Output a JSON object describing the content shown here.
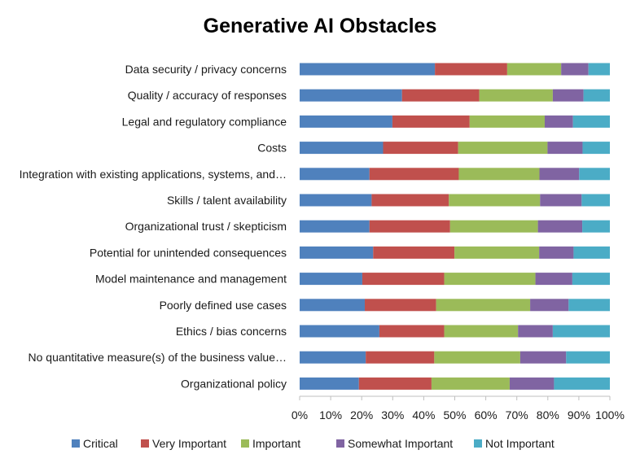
{
  "chart_data": {
    "type": "bar",
    "orientation": "horizontal",
    "stacking": "percent",
    "title": "Generative AI Obstacles",
    "xlabel": "",
    "ylabel": "",
    "xlim": [
      0,
      100
    ],
    "grid": false,
    "legend_position": "bottom",
    "x_ticks": [
      "0%",
      "10%",
      "20%",
      "30%",
      "40%",
      "50%",
      "60%",
      "70%",
      "80%",
      "90%",
      "100%"
    ],
    "categories": [
      "Data security / privacy concerns",
      "Quality / accuracy of responses",
      "Legal and regulatory compliance",
      "Costs",
      "Integration with existing applications, systems, and…",
      "Skills / talent availability",
      "Organizational trust / skepticism",
      "Potential for unintended consequences",
      "Model maintenance and management",
      "Poorly defined use cases",
      "Ethics / bias concerns",
      "No quantitative measure(s) of the business value…",
      "Organizational policy"
    ],
    "series": [
      {
        "name": "Critical",
        "color": "#4f81bd",
        "values": [
          43.6,
          33.0,
          29.9,
          26.9,
          22.5,
          23.2,
          22.5,
          23.7,
          20.2,
          21.0,
          25.7,
          21.3,
          19.1
        ]
      },
      {
        "name": "Very Important",
        "color": "#c0504d",
        "values": [
          23.3,
          24.9,
          24.9,
          24.2,
          28.8,
          24.9,
          26.0,
          26.2,
          26.4,
          23.0,
          20.9,
          22.1,
          23.4
        ]
      },
      {
        "name": "Important",
        "color": "#9bbb59",
        "values": [
          17.4,
          23.7,
          24.2,
          28.8,
          26.0,
          29.4,
          28.3,
          27.3,
          29.4,
          30.3,
          23.8,
          27.7,
          25.2
        ]
      },
      {
        "name": "Somewhat Important",
        "color": "#8064a2",
        "values": [
          8.8,
          9.9,
          9.1,
          11.3,
          12.8,
          13.4,
          14.3,
          11.1,
          11.9,
          12.4,
          11.2,
          14.8,
          14.3
        ]
      },
      {
        "name": "Not Important",
        "color": "#4bacc6",
        "values": [
          6.9,
          8.5,
          11.9,
          8.8,
          9.9,
          9.1,
          8.9,
          11.7,
          12.1,
          13.3,
          18.4,
          14.1,
          18.0
        ]
      }
    ]
  }
}
